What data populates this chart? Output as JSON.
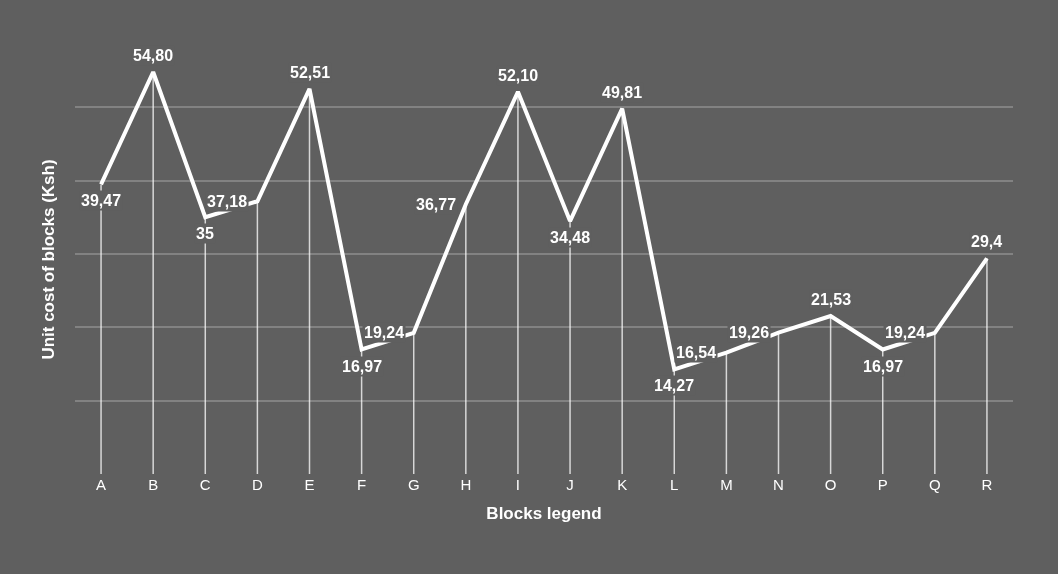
{
  "chart_data": {
    "type": "line",
    "xlabel": "Blocks legend",
    "ylabel": "Unit cost of blocks (Ksh)",
    "categories": [
      "A",
      "B",
      "C",
      "D",
      "E",
      "F",
      "G",
      "H",
      "I",
      "J",
      "K",
      "L",
      "M",
      "N",
      "O",
      "P",
      "Q",
      "R"
    ],
    "series": [
      {
        "color": "#ffffff",
        "values": [
          39.47,
          54.8,
          35,
          37.18,
          52.51,
          16.97,
          19.24,
          36.77,
          52.1,
          34.48,
          49.81,
          14.27,
          16.54,
          19.26,
          21.53,
          16.97,
          19.24,
          29.4
        ],
        "value_labels": [
          "39,47",
          "54,80",
          "35",
          "37,18",
          "52,51",
          "16,97",
          "19,24",
          "36,77",
          "52,10",
          "34,48",
          "49,81",
          "14,27",
          "16,54",
          "19,26",
          "21,53",
          "16,97",
          "19,24",
          "29,4"
        ]
      }
    ],
    "tick_labels": "x",
    "grid": true,
    "line_style": "solid"
  }
}
